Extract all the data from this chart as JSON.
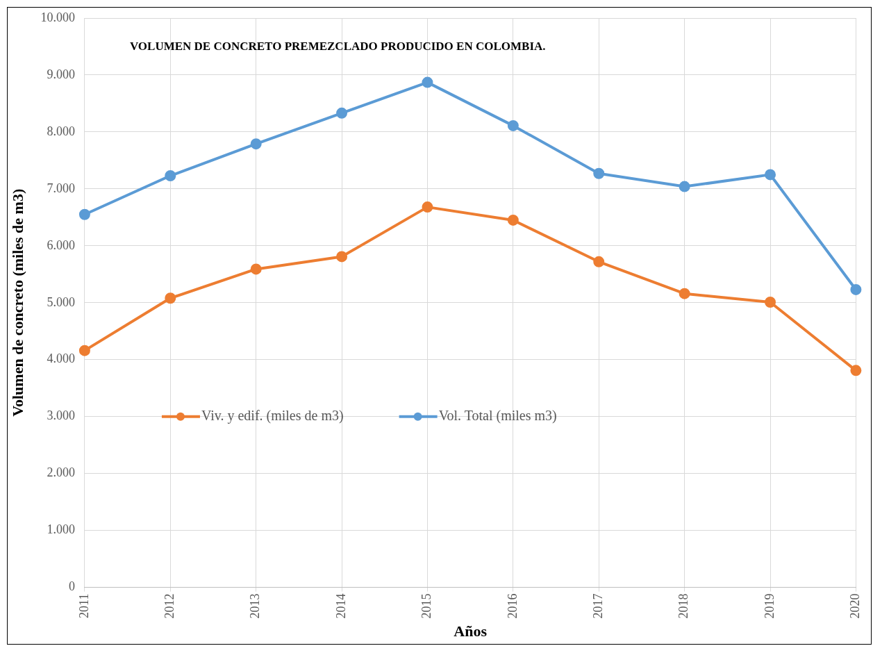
{
  "chart_data": {
    "type": "line",
    "title": "VOLUMEN DE CONCRETO PREMEZCLADO PRODUCIDO EN COLOMBIA.",
    "xlabel": "Años",
    "ylabel": "Volumen de concreto (miles de m3)",
    "categories": [
      "2011",
      "2012",
      "2013",
      "2014",
      "2015",
      "2016",
      "2017",
      "2018",
      "2019",
      "2020"
    ],
    "series": [
      {
        "name": "Viv. y edif. (miles de m3)",
        "color": "#ed7d31",
        "values": [
          4160,
          5080,
          5590,
          5810,
          6680,
          6450,
          5720,
          5160,
          5010,
          3810
        ]
      },
      {
        "name": "Vol. Total (miles m3)",
        "color": "#5b9bd5",
        "values": [
          6550,
          7230,
          7790,
          8330,
          8870,
          8110,
          7270,
          7040,
          7250,
          5230
        ]
      }
    ],
    "ylim": [
      0,
      10000
    ],
    "yticks": [
      0,
      {
        "value": 1000,
        "label": "1.000"
      },
      {
        "value": 2000,
        "label": "2.000"
      },
      {
        "value": 3000,
        "label": "3.000"
      },
      {
        "value": 4000,
        "label": "4.000"
      },
      {
        "value": 5000,
        "label": "5.000"
      },
      {
        "value": 6000,
        "label": "6.000"
      },
      {
        "value": 7000,
        "label": "7.000"
      },
      {
        "value": 8000,
        "label": "8.000"
      },
      {
        "value": 9000,
        "label": "9.000"
      },
      {
        "value": 10000,
        "label": "10.000"
      }
    ],
    "grid": true,
    "legend": "center",
    "marker": "circle",
    "line_style": "solid"
  }
}
